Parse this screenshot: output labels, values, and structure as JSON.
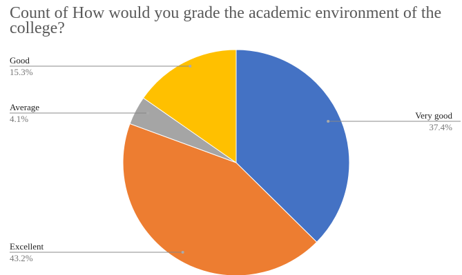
{
  "chart_data": {
    "type": "pie",
    "title": "Count of How would you grade the academic environment of the college?",
    "slices": [
      {
        "label": "Very good",
        "value": 37.4,
        "display": "37.4%",
        "color": "#4472C4"
      },
      {
        "label": "Excellent",
        "value": 43.2,
        "display": "43.2%",
        "color": "#ED7D31"
      },
      {
        "label": "Average",
        "value": 4.1,
        "display": "4.1%",
        "color": "#A5A5A5"
      },
      {
        "label": "Good",
        "value": 15.3,
        "display": "15.3%",
        "color": "#FFC000"
      }
    ],
    "start_angle": "12 o'clock",
    "direction": "clockwise",
    "legend": "none"
  }
}
